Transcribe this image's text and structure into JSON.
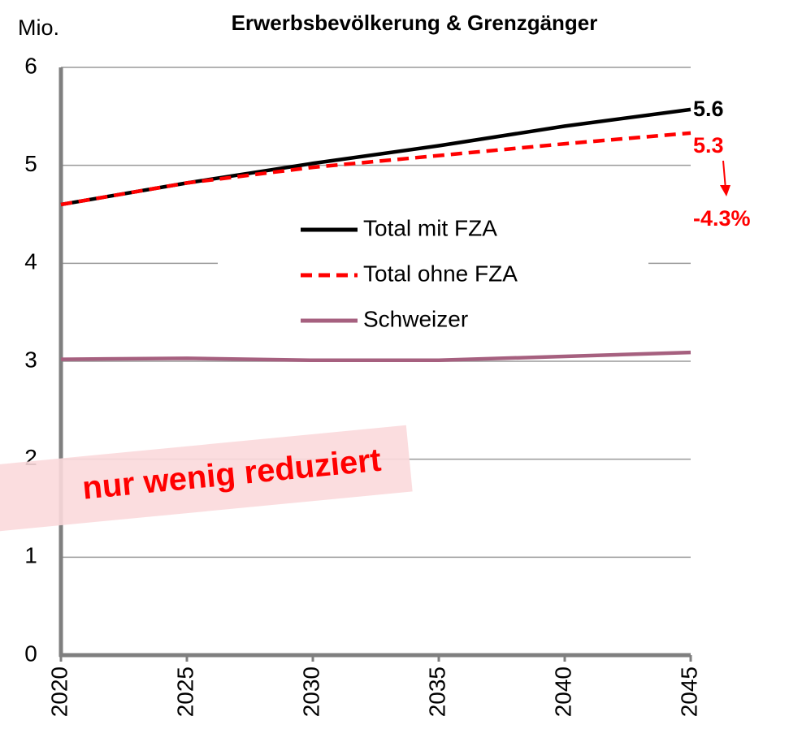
{
  "chart_data": {
    "type": "line",
    "title": "Erwerbsbevölkerung & Grenzgänger",
    "y_unit": "Mio.",
    "x": [
      2020,
      2025,
      2030,
      2035,
      2040,
      2045
    ],
    "xlim": [
      2020,
      2045
    ],
    "xticks": [
      2020,
      2025,
      2030,
      2035,
      2040,
      2045
    ],
    "ylim": [
      0,
      6
    ],
    "yticks": [
      0,
      1,
      2,
      3,
      4,
      5,
      6
    ],
    "grid": true,
    "series": [
      {
        "name": "Total mit FZA",
        "color": "#000000",
        "dash": false,
        "values": [
          4.6,
          4.82,
          5.02,
          5.2,
          5.4,
          5.57
        ]
      },
      {
        "name": "Total ohne FZA",
        "color": "#ff0000",
        "dash": true,
        "values": [
          4.6,
          4.82,
          4.98,
          5.1,
          5.22,
          5.33
        ]
      },
      {
        "name": "Schweizer",
        "color": "#a6607f",
        "dash": false,
        "values": [
          3.02,
          3.03,
          3.01,
          3.01,
          3.05,
          3.09
        ]
      }
    ],
    "annotations": [
      {
        "text": "5.6",
        "color": "#000000"
      },
      {
        "text": "5.3",
        "color": "#ff0000"
      },
      {
        "text": "-4.3%",
        "color": "#ff0000"
      }
    ],
    "banner": "nur wenig reduziert"
  }
}
